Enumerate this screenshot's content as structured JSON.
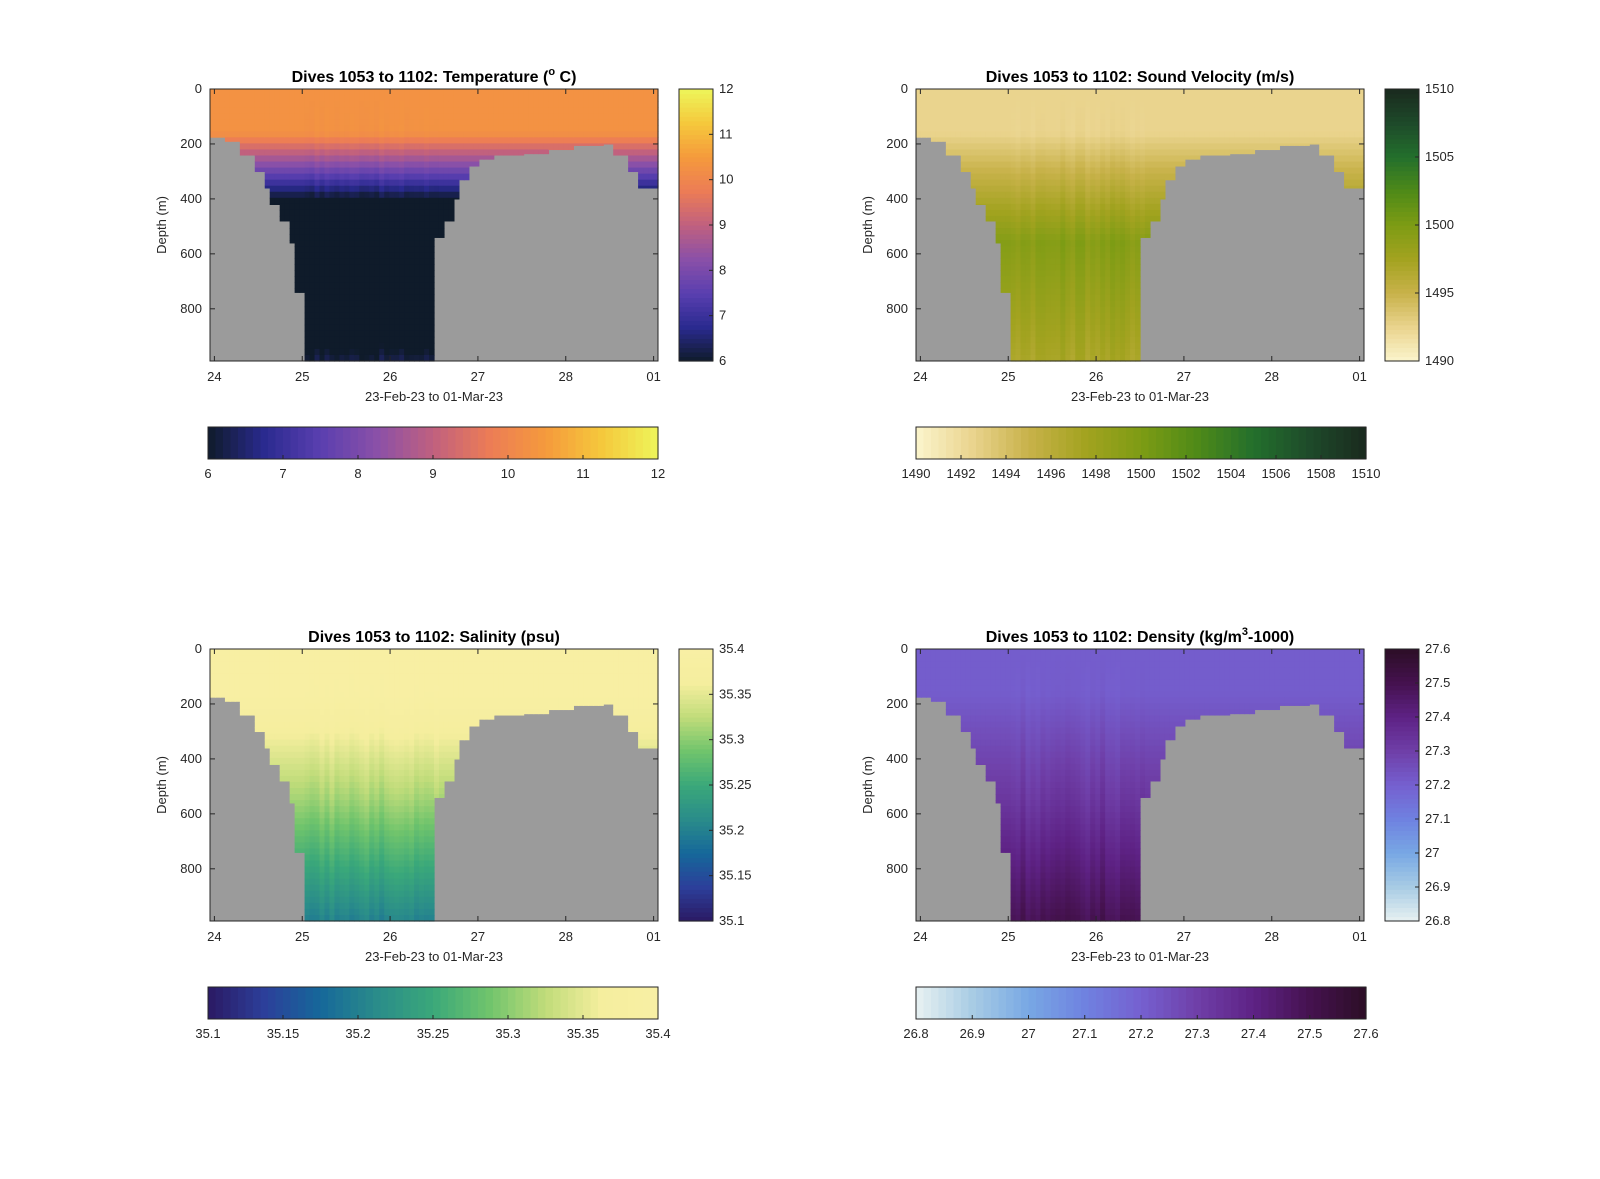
{
  "chart_data": [
    {
      "type": "heatmap",
      "variable": "temperature",
      "title": "Dives 1053 to 1102: Temperature (",
      "title_sup": "o",
      "title_tail": " C)",
      "xlabel": "23-Feb-23 to 01-Mar-23",
      "ylabel": "Depth (m)",
      "x_ticks": [
        "24",
        "25",
        "26",
        "27",
        "28",
        "01"
      ],
      "xlim": [
        23.95,
        29.05
      ],
      "y_ticks": [
        0,
        200,
        400,
        600,
        800
      ],
      "ylim": [
        0,
        990
      ],
      "colorbar": {
        "min": 6,
        "max": 12,
        "ticks": [
          "6",
          "7",
          "8",
          "9",
          "10",
          "11",
          "12"
        ],
        "colors": [
          "#0f1b2a",
          "#2a2a8f",
          "#5a3fb0",
          "#8a50a8",
          "#c0607f",
          "#ec7c56",
          "#f59a3c",
          "#f5c83c",
          "#eef55a"
        ]
      },
      "profile": {
        "surface": 10.3,
        "gradient": 3.2,
        "deep": 6.3
      },
      "grid": false
    },
    {
      "type": "heatmap",
      "variable": "sound_velocity",
      "title": "Dives 1053 to 1102: Sound Velocity (m/s)",
      "xlabel": "23-Feb-23 to 01-Mar-23",
      "ylabel": "Depth (m)",
      "x_ticks": [
        "24",
        "25",
        "26",
        "27",
        "28",
        "01"
      ],
      "xlim": [
        23.95,
        29.05
      ],
      "y_ticks": [
        0,
        200,
        400,
        600,
        800
      ],
      "ylim": [
        0,
        990
      ],
      "colorbar": {
        "min": 1490,
        "max": 1510,
        "ticks": [
          "1490",
          "1492",
          "1494",
          "1496",
          "1498",
          "1500",
          "1502",
          "1504",
          "1506",
          "1508",
          "1510"
        ],
        "vertical_ticks": [
          "1490",
          "1495",
          "1500",
          "1505",
          "1510"
        ],
        "colors": [
          "#fbf5cd",
          "#ead48e",
          "#c8b24a",
          "#a3a320",
          "#7d9c14",
          "#4f8a18",
          "#236f2c",
          "#1e4a2a",
          "#1a2a1e"
        ]
      },
      "profile": {
        "surface": 1492.5,
        "gradient": 1499.5,
        "deep": 1497.0
      },
      "grid": false
    },
    {
      "type": "heatmap",
      "variable": "salinity",
      "title": "Dives 1053 to 1102: Salinity (psu)",
      "xlabel": "23-Feb-23 to 01-Mar-23",
      "ylabel": "Depth (m)",
      "x_ticks": [
        "24",
        "25",
        "26",
        "27",
        "28",
        "01"
      ],
      "xlim": [
        23.95,
        29.05
      ],
      "y_ticks": [
        0,
        200,
        400,
        600,
        800
      ],
      "ylim": [
        0,
        990
      ],
      "colorbar": {
        "min": 35.1,
        "max": 35.4,
        "ticks": [
          "35.1",
          "35.15",
          "35.2",
          "35.25",
          "35.3",
          "35.35",
          "35.4"
        ],
        "colors": [
          "#2b1a63",
          "#2c3f9a",
          "#16689a",
          "#2a8c8a",
          "#3aa87a",
          "#70c46c",
          "#c0dc7a",
          "#f5ee9e",
          "#f8efa4"
        ]
      },
      "profile": {
        "surface": 35.395,
        "gradient": 35.31,
        "deep": 35.2
      },
      "grid": false
    },
    {
      "type": "heatmap",
      "variable": "density",
      "title": "Dives 1053 to 1102: Density (kg/m",
      "title_sup": "3",
      "title_tail": "-1000)",
      "xlabel": "23-Feb-23 to 01-Mar-23",
      "ylabel": "Depth (m)",
      "x_ticks": [
        "24",
        "25",
        "26",
        "27",
        "28",
        "01"
      ],
      "xlim": [
        23.95,
        29.05
      ],
      "y_ticks": [
        0,
        200,
        400,
        600,
        800
      ],
      "ylim": [
        0,
        990
      ],
      "colorbar": {
        "min": 26.8,
        "max": 27.6,
        "ticks": [
          "26.8",
          "26.9",
          "27",
          "27.1",
          "27.2",
          "27.3",
          "27.4",
          "27.5",
          "27.6"
        ],
        "colors": [
          "#e8f2f2",
          "#a8cce4",
          "#78a8e4",
          "#6f82e0",
          "#7560d0",
          "#6f3fa8",
          "#5e2285",
          "#45124f",
          "#2c0e26"
        ]
      },
      "profile": {
        "surface": 27.21,
        "gradient": 27.33,
        "deep": 27.5
      },
      "grid": false
    }
  ],
  "seafloor": {
    "x": [
      23.95,
      24.1,
      24.3,
      24.45,
      24.55,
      24.65,
      24.75,
      24.85,
      24.92,
      25.0,
      25.4,
      25.8,
      26.2,
      26.5,
      26.6,
      26.7,
      26.8,
      26.9,
      27.0,
      27.2,
      27.5,
      27.8,
      28.1,
      28.4,
      28.55,
      28.7,
      28.85,
      29.05
    ],
    "depth": [
      175,
      190,
      240,
      300,
      360,
      420,
      480,
      560,
      740,
      990,
      990,
      990,
      990,
      540,
      480,
      400,
      330,
      280,
      255,
      240,
      235,
      220,
      205,
      200,
      240,
      300,
      360,
      400
    ]
  },
  "water_gap": [
    24.98,
    26.52
  ]
}
